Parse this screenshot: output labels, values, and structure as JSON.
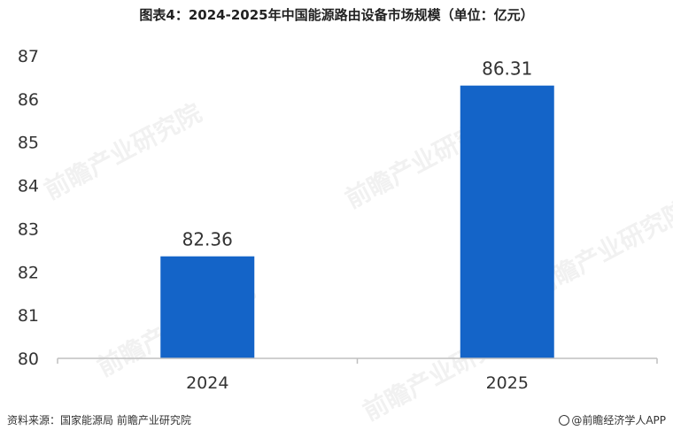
{
  "title": "图表4：2024-2025年中国能源路由设备市场规模（单位：亿元）",
  "source": "资料来源：国家能源局  前瞻产业研究院",
  "brand": "@前瞻经济学人APP",
  "watermark": "前瞻产业研究院",
  "colors": {
    "bar": "#1464C8",
    "axis": "#BFBFBF"
  },
  "chart_data": {
    "type": "bar",
    "categories": [
      "2024",
      "2025"
    ],
    "values": [
      82.36,
      86.31
    ],
    "data_labels": [
      "82.36",
      "86.31"
    ],
    "ylim": [
      80,
      87
    ],
    "yticks": [
      "80",
      "81",
      "82",
      "83",
      "84",
      "85",
      "86",
      "87"
    ],
    "xlabel": "",
    "ylabel": "",
    "grid": false
  }
}
